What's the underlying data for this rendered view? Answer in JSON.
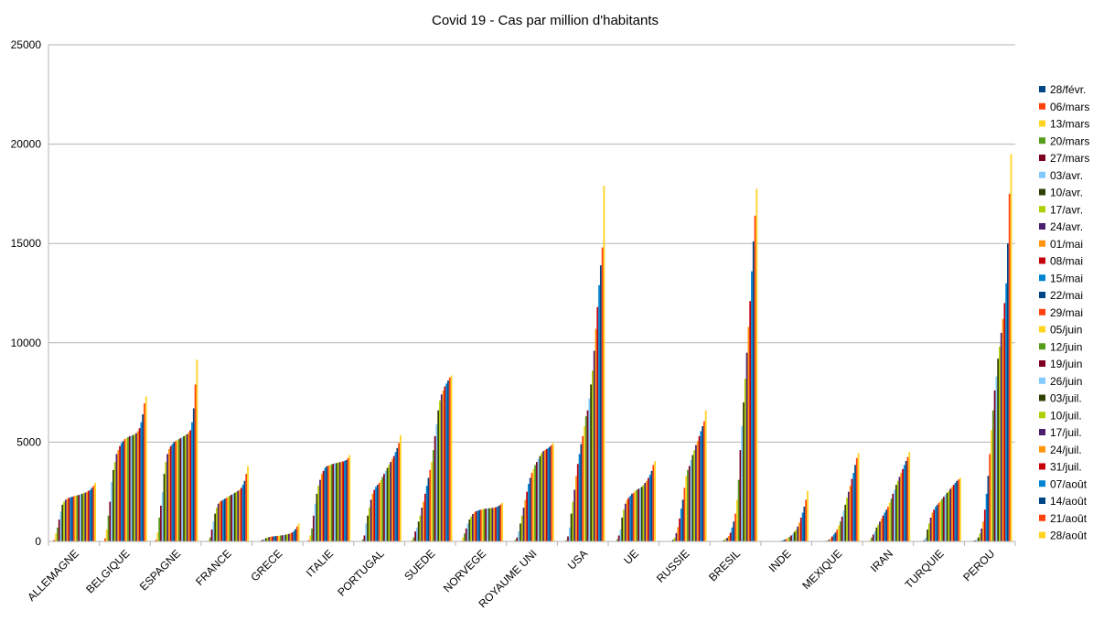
{
  "chart_data": {
    "type": "bar",
    "title": "Covid 19 - Cas par million d'habitants",
    "xlabel": "",
    "ylabel": "",
    "ylim": [
      0,
      25000
    ],
    "yticks": [
      0,
      5000,
      10000,
      15000,
      20000,
      25000
    ],
    "grid": true,
    "legend_position": "right",
    "categories": [
      "ALLEMAGNE",
      "BELGIQUE",
      "ESPAGNE",
      "FRANCE",
      "GRECE",
      "ITALIE",
      "PORTUGAL",
      "SUEDE",
      "NORVEGE",
      "ROYAUME UNI",
      "USA",
      "UE",
      "RUSSIE",
      "BRESIL",
      "INDE",
      "MEXIQUE",
      "IRAN",
      "TURQUIE",
      "PEROU"
    ],
    "series": [
      {
        "name": "28/févr.",
        "color": "#004586",
        "values": [
          10,
          20,
          10,
          20,
          1,
          14,
          0,
          1,
          3,
          0,
          0,
          5,
          0,
          0,
          0,
          0,
          1,
          0,
          0
        ]
      },
      {
        "name": "06/mars",
        "color": "#ff420e",
        "values": [
          80,
          150,
          80,
          25,
          5,
          70,
          1,
          20,
          30,
          10,
          1,
          15,
          0,
          0,
          0,
          0,
          10,
          0,
          0
        ]
      },
      {
        "name": "13/mars",
        "color": "#ffd320",
        "values": [
          400,
          600,
          450,
          60,
          10,
          300,
          10,
          80,
          200,
          30,
          5,
          30,
          0,
          0,
          0,
          1,
          70,
          1,
          5
        ]
      },
      {
        "name": "20/mars",
        "color": "#579d1c",
        "values": [
          700,
          1300,
          1200,
          200,
          40,
          650,
          100,
          200,
          400,
          80,
          60,
          100,
          2,
          3,
          0,
          2,
          200,
          10,
          30
        ]
      },
      {
        "name": "27/mars",
        "color": "#7e0021",
        "values": [
          1100,
          2000,
          1800,
          600,
          80,
          1300,
          300,
          500,
          650,
          200,
          250,
          300,
          10,
          10,
          1,
          5,
          350,
          60,
          50
        ]
      },
      {
        "name": "03/avr.",
        "color": "#83caff",
        "values": [
          1500,
          3000,
          2500,
          1000,
          120,
          1900,
          900,
          700,
          900,
          500,
          700,
          600,
          30,
          30,
          2,
          15,
          500,
          200,
          80
        ]
      },
      {
        "name": "10/avr.",
        "color": "#314004",
        "values": [
          1850,
          3600,
          3400,
          1400,
          160,
          2400,
          1300,
          1000,
          1100,
          900,
          1400,
          1200,
          80,
          60,
          5,
          30,
          700,
          600,
          200
        ]
      },
      {
        "name": "17/avr.",
        "color": "#aecf00",
        "values": [
          2000,
          4000,
          4000,
          1700,
          200,
          2800,
          1700,
          1300,
          1250,
          1300,
          2000,
          1600,
          180,
          120,
          8,
          50,
          850,
          900,
          400
        ]
      },
      {
        "name": "24/avr.",
        "color": "#4b1f6f",
        "values": [
          2100,
          4400,
          4400,
          1900,
          220,
          3100,
          2100,
          1700,
          1380,
          1700,
          2600,
          1900,
          420,
          180,
          12,
          80,
          1000,
          1200,
          650
        ]
      },
      {
        "name": "01/mai",
        "color": "#ff950e",
        "values": [
          2150,
          4600,
          4650,
          2000,
          240,
          3400,
          2400,
          2000,
          1450,
          2100,
          3300,
          2100,
          720,
          280,
          20,
          150,
          1150,
          1450,
          1000
        ]
      },
      {
        "name": "08/mai",
        "color": "#c5000b",
        "values": [
          2200,
          4800,
          4800,
          2050,
          250,
          3550,
          2600,
          2400,
          1520,
          2500,
          3900,
          2200,
          1150,
          440,
          35,
          250,
          1300,
          1600,
          1600
        ]
      },
      {
        "name": "15/mai",
        "color": "#0084d1",
        "values": [
          2220,
          4950,
          4900,
          2100,
          260,
          3700,
          2750,
          2800,
          1550,
          2900,
          4400,
          2300,
          1650,
          700,
          60,
          350,
          1450,
          1750,
          2400
        ]
      },
      {
        "name": "22/mai",
        "color": "#004586",
        "values": [
          2250,
          5050,
          5000,
          2150,
          270,
          3780,
          2850,
          3200,
          1580,
          3200,
          4900,
          2400,
          2100,
          1000,
          90,
          450,
          1600,
          1850,
          3300
        ]
      },
      {
        "name": "29/mai",
        "color": "#ff420e",
        "values": [
          2280,
          5150,
          5050,
          2200,
          280,
          3820,
          2950,
          3600,
          1600,
          3450,
          5300,
          2450,
          2700,
          1400,
          120,
          600,
          1750,
          1950,
          4400
        ]
      },
      {
        "name": "05/juin",
        "color": "#ffd320",
        "values": [
          2300,
          5200,
          5100,
          2250,
          290,
          3850,
          3100,
          4000,
          1620,
          3650,
          5800,
          2550,
          3300,
          2100,
          170,
          800,
          1950,
          2050,
          5600
        ]
      },
      {
        "name": "12/juin",
        "color": "#579d1c",
        "values": [
          2320,
          5250,
          5150,
          2300,
          300,
          3880,
          3250,
          4600,
          1640,
          3850,
          6300,
          2600,
          3600,
          3100,
          230,
          1000,
          2150,
          2150,
          6600
        ]
      },
      {
        "name": "19/juin",
        "color": "#7e0021",
        "values": [
          2340,
          5300,
          5200,
          2350,
          310,
          3910,
          3400,
          5300,
          1650,
          4000,
          6600,
          2650,
          3800,
          4600,
          300,
          1250,
          2400,
          2250,
          7600
        ]
      },
      {
        "name": "26/juin",
        "color": "#83caff",
        "values": [
          2370,
          5320,
          5250,
          2400,
          320,
          3930,
          3550,
          5900,
          1660,
          4150,
          7200,
          2700,
          4100,
          5800,
          380,
          1550,
          2600,
          2350,
          8300
        ]
      },
      {
        "name": "03/juil.",
        "color": "#314004",
        "values": [
          2400,
          5350,
          5300,
          2450,
          340,
          3950,
          3700,
          6600,
          1670,
          4300,
          7900,
          2750,
          4350,
          7000,
          480,
          1850,
          2850,
          2450,
          9200
        ]
      },
      {
        "name": "10/juil.",
        "color": "#aecf00",
        "values": [
          2430,
          5400,
          5350,
          2500,
          360,
          3970,
          3850,
          7100,
          1680,
          4450,
          8600,
          2850,
          4600,
          8200,
          600,
          2200,
          3050,
          2550,
          9800
        ]
      },
      {
        "name": "17/juil.",
        "color": "#4b1f6f",
        "values": [
          2460,
          5450,
          5400,
          2550,
          380,
          3990,
          4000,
          7400,
          1690,
          4550,
          9600,
          2950,
          4850,
          9500,
          750,
          2500,
          3250,
          2650,
          10500
        ]
      },
      {
        "name": "24/juil.",
        "color": "#ff950e",
        "values": [
          2500,
          5550,
          5500,
          2600,
          410,
          4010,
          4150,
          7600,
          1700,
          4600,
          10700,
          3050,
          5050,
          10800,
          950,
          2800,
          3450,
          2750,
          11200
        ]
      },
      {
        "name": "31/juil.",
        "color": "#c5000b",
        "values": [
          2550,
          5700,
          5600,
          2700,
          450,
          4030,
          4300,
          7800,
          1720,
          4650,
          11800,
          3200,
          5300,
          12100,
          1200,
          3150,
          3650,
          2850,
          12000
        ]
      },
      {
        "name": "07/août",
        "color": "#0084d1",
        "values": [
          2600,
          6000,
          6000,
          2850,
          520,
          4060,
          4500,
          7950,
          1750,
          4700,
          12900,
          3350,
          5550,
          13600,
          1450,
          3450,
          3850,
          2950,
          13000
        ]
      },
      {
        "name": "14/août",
        "color": "#004586",
        "values": [
          2700,
          6400,
          6700,
          3050,
          620,
          4100,
          4700,
          8100,
          1800,
          4780,
          13900,
          3550,
          5800,
          15100,
          1750,
          3850,
          4050,
          3050,
          15000
        ]
      },
      {
        "name": "21/août",
        "color": "#ff420e",
        "values": [
          2800,
          6950,
          7900,
          3400,
          750,
          4200,
          4950,
          8250,
          1860,
          4850,
          14800,
          3850,
          6050,
          16400,
          2100,
          4200,
          4250,
          3120,
          17500
        ]
      },
      {
        "name": "28/août",
        "color": "#ffd320",
        "values": [
          2950,
          7300,
          9150,
          3800,
          900,
          4350,
          5350,
          8350,
          1950,
          4950,
          17900,
          4050,
          6600,
          17750,
          2550,
          4450,
          4500,
          3200,
          19500
        ]
      }
    ]
  }
}
